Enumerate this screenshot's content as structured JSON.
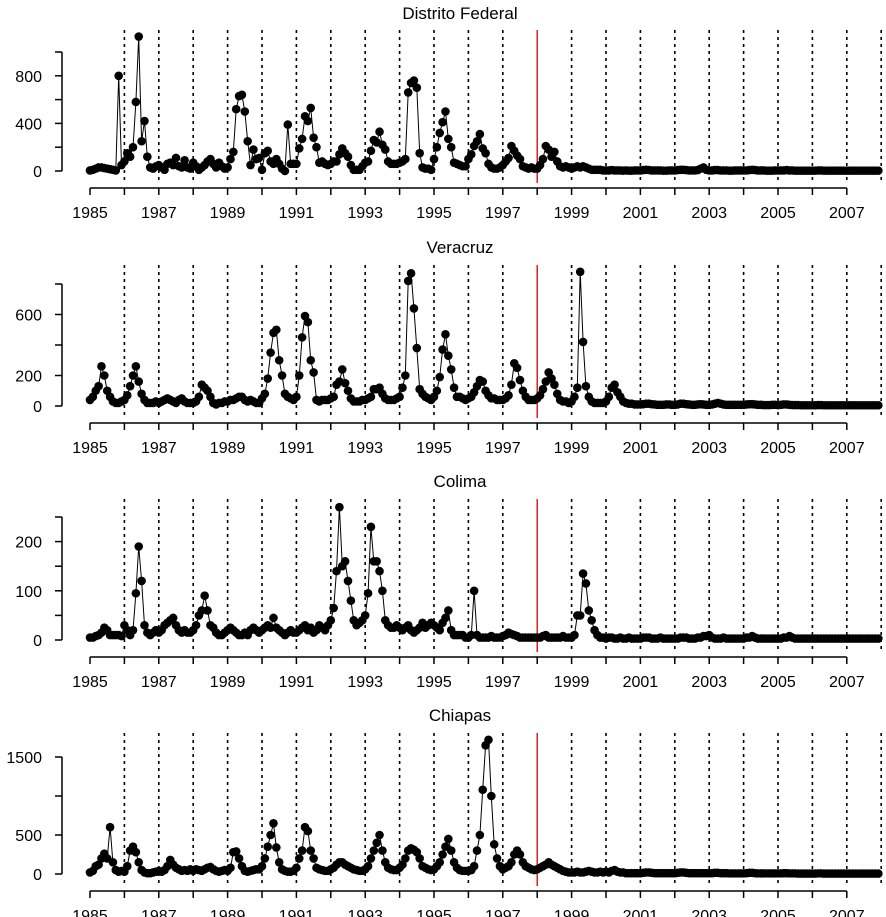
{
  "chart_data": [
    {
      "type": "line",
      "title": "Distrito Federal",
      "ylim": [
        0,
        1000
      ],
      "yticks": [
        0,
        200,
        400,
        600,
        800,
        1000
      ],
      "ytick_labels": [
        "0",
        "400",
        "800"
      ],
      "xlim": [
        1985,
        2008
      ],
      "xtick_labels": [
        "1985",
        "1987",
        "1989",
        "1991",
        "1993",
        "1995",
        "1997",
        "1999",
        "2001",
        "2003",
        "2005",
        "2007"
      ],
      "start": "1985-01",
      "frequency": "monthly",
      "vertical_marker": 1998,
      "marker_color": "#cc0000",
      "values": [
        5,
        10,
        20,
        30,
        30,
        25,
        20,
        15,
        10,
        5,
        800,
        50,
        80,
        150,
        120,
        200,
        580,
        1130,
        250,
        420,
        120,
        30,
        20,
        40,
        50,
        30,
        10,
        60,
        70,
        50,
        110,
        40,
        30,
        90,
        30,
        20,
        70,
        40,
        10,
        30,
        50,
        80,
        100,
        60,
        30,
        70,
        40,
        20,
        30,
        100,
        160,
        520,
        630,
        640,
        500,
        250,
        50,
        180,
        100,
        110,
        10,
        150,
        170,
        80,
        60,
        100,
        60,
        20,
        0,
        390,
        60,
        60,
        60,
        190,
        270,
        460,
        420,
        530,
        280,
        200,
        70,
        80,
        60,
        50,
        60,
        80,
        80,
        140,
        190,
        150,
        120,
        50,
        10,
        10,
        10,
        40,
        70,
        80,
        170,
        260,
        240,
        330,
        220,
        180,
        80,
        60,
        60,
        60,
        70,
        80,
        100,
        660,
        740,
        760,
        700,
        150,
        30,
        20,
        20,
        10,
        100,
        200,
        320,
        410,
        500,
        270,
        200,
        70,
        60,
        50,
        40,
        40,
        100,
        140,
        210,
        250,
        310,
        190,
        150,
        60,
        30,
        20,
        20,
        30,
        50,
        80,
        110,
        210,
        170,
        130,
        100,
        40,
        30,
        20,
        30,
        20,
        20,
        50,
        100,
        210,
        180,
        120,
        160,
        80,
        40,
        30,
        40,
        30,
        20,
        30,
        40,
        30,
        40,
        30,
        20,
        10,
        10,
        10,
        10,
        5,
        5,
        5,
        8,
        5,
        5,
        5,
        3,
        5,
        3,
        3,
        5,
        5,
        5,
        8,
        10,
        8,
        5,
        5,
        5,
        5,
        3,
        3,
        5,
        5,
        5,
        8,
        10,
        10,
        8,
        5,
        5,
        5,
        8,
        20,
        30,
        10,
        5,
        5,
        8,
        8,
        5,
        5,
        5,
        3,
        3,
        5,
        5,
        5,
        5,
        5,
        8,
        10,
        8,
        5,
        5,
        5,
        3,
        3,
        3,
        5,
        5,
        5,
        5,
        8,
        5,
        5,
        3,
        3,
        3,
        3,
        3,
        3,
        3,
        3,
        5,
        5,
        3,
        3,
        3,
        3,
        3,
        3,
        3,
        3,
        3,
        3,
        3,
        3,
        3,
        3,
        3,
        3,
        3,
        3,
        3,
        3
      ]
    },
    {
      "type": "line",
      "title": "Veracruz",
      "ylim": [
        0,
        800
      ],
      "yticks": [
        0,
        200,
        400,
        600,
        800
      ],
      "ytick_labels": [
        "0",
        "200",
        "600"
      ],
      "xlim": [
        1985,
        2008
      ],
      "xtick_labels": [
        "1985",
        "1987",
        "1989",
        "1991",
        "1993",
        "1995",
        "1997",
        "1999",
        "2001",
        "2003",
        "2005",
        "2007"
      ],
      "start": "1985-01",
      "frequency": "monthly",
      "vertical_marker": 1998,
      "marker_color": "#cc0000",
      "values": [
        40,
        60,
        100,
        130,
        260,
        200,
        100,
        60,
        30,
        20,
        20,
        30,
        40,
        70,
        130,
        200,
        260,
        160,
        80,
        40,
        20,
        20,
        20,
        30,
        20,
        30,
        40,
        50,
        40,
        30,
        20,
        40,
        50,
        30,
        20,
        20,
        20,
        30,
        60,
        140,
        120,
        100,
        60,
        20,
        10,
        20,
        20,
        30,
        30,
        40,
        40,
        50,
        60,
        60,
        40,
        30,
        40,
        30,
        20,
        20,
        50,
        80,
        180,
        350,
        480,
        500,
        300,
        200,
        80,
        60,
        50,
        40,
        60,
        200,
        450,
        590,
        550,
        300,
        220,
        40,
        30,
        40,
        40,
        40,
        50,
        60,
        140,
        160,
        240,
        150,
        100,
        50,
        30,
        30,
        30,
        40,
        40,
        50,
        60,
        110,
        110,
        120,
        80,
        50,
        40,
        40,
        40,
        50,
        60,
        120,
        200,
        820,
        870,
        640,
        380,
        110,
        80,
        60,
        50,
        40,
        60,
        100,
        190,
        370,
        470,
        330,
        240,
        120,
        60,
        60,
        50,
        40,
        50,
        60,
        90,
        130,
        170,
        160,
        100,
        70,
        50,
        50,
        40,
        40,
        40,
        50,
        70,
        140,
        280,
        250,
        170,
        100,
        60,
        40,
        40,
        40,
        50,
        70,
        110,
        160,
        220,
        180,
        140,
        80,
        40,
        30,
        30,
        20,
        30,
        60,
        120,
        880,
        420,
        130,
        60,
        30,
        20,
        20,
        20,
        20,
        30,
        60,
        120,
        140,
        90,
        60,
        30,
        20,
        15,
        15,
        10,
        10,
        10,
        12,
        15,
        15,
        12,
        10,
        8,
        8,
        8,
        10,
        10,
        8,
        8,
        10,
        15,
        15,
        12,
        10,
        8,
        8,
        10,
        12,
        10,
        8,
        8,
        10,
        15,
        20,
        15,
        10,
        8,
        8,
        8,
        8,
        8,
        8,
        8,
        10,
        12,
        12,
        10,
        8,
        8,
        6,
        6,
        6,
        8,
        8,
        6,
        8,
        10,
        10,
        8,
        6,
        6,
        6,
        5,
        5,
        5,
        5,
        5,
        5,
        6,
        6,
        5,
        5,
        5,
        5,
        5,
        5,
        5,
        5,
        5,
        5,
        5,
        5,
        5,
        5,
        5,
        5,
        5,
        5,
        5,
        5
      ]
    },
    {
      "type": "line",
      "title": "Colima",
      "ylim": [
        0,
        250
      ],
      "yticks": [
        0,
        50,
        100,
        150,
        200,
        250
      ],
      "ytick_labels": [
        "0",
        "100",
        "200"
      ],
      "xlim": [
        1985,
        2008
      ],
      "xtick_labels": [
        "1985",
        "1987",
        "1989",
        "1991",
        "1993",
        "1995",
        "1997",
        "1999",
        "2001",
        "2003",
        "2005",
        "2007"
      ],
      "start": "1985-01",
      "frequency": "monthly",
      "vertical_marker": 1998,
      "marker_color": "#cc0000",
      "values": [
        5,
        5,
        8,
        10,
        15,
        25,
        20,
        10,
        10,
        10,
        10,
        8,
        30,
        20,
        10,
        20,
        95,
        190,
        120,
        30,
        15,
        10,
        15,
        20,
        15,
        20,
        30,
        35,
        40,
        45,
        30,
        20,
        15,
        20,
        15,
        15,
        20,
        30,
        50,
        60,
        90,
        60,
        30,
        25,
        15,
        10,
        10,
        15,
        20,
        25,
        20,
        15,
        10,
        10,
        15,
        10,
        20,
        25,
        20,
        15,
        20,
        25,
        30,
        25,
        45,
        25,
        20,
        15,
        10,
        15,
        20,
        15,
        15,
        20,
        25,
        30,
        20,
        25,
        15,
        20,
        30,
        25,
        20,
        30,
        40,
        65,
        140,
        270,
        150,
        160,
        120,
        80,
        40,
        30,
        35,
        40,
        50,
        95,
        230,
        160,
        160,
        140,
        100,
        40,
        30,
        25,
        25,
        30,
        25,
        20,
        25,
        30,
        20,
        15,
        20,
        25,
        35,
        25,
        30,
        35,
        30,
        25,
        20,
        35,
        45,
        60,
        20,
        10,
        10,
        10,
        10,
        5,
        5,
        10,
        100,
        10,
        5,
        5,
        5,
        5,
        8,
        5,
        5,
        5,
        8,
        10,
        15,
        12,
        10,
        8,
        5,
        5,
        5,
        5,
        5,
        5,
        5,
        5,
        8,
        10,
        5,
        5,
        5,
        5,
        5,
        8,
        5,
        5,
        5,
        10,
        50,
        50,
        135,
        115,
        60,
        40,
        20,
        10,
        5,
        5,
        3,
        5,
        5,
        3,
        3,
        5,
        3,
        3,
        5,
        3,
        3,
        3,
        3,
        5,
        5,
        5,
        3,
        3,
        3,
        5,
        3,
        3,
        3,
        3,
        3,
        3,
        5,
        5,
        5,
        3,
        3,
        3,
        5,
        5,
        8,
        8,
        10,
        5,
        3,
        3,
        3,
        5,
        3,
        3,
        3,
        3,
        3,
        3,
        3,
        5,
        5,
        8,
        5,
        3,
        3,
        3,
        3,
        3,
        3,
        3,
        3,
        3,
        5,
        5,
        8,
        5,
        3,
        3,
        3,
        3,
        3,
        3,
        3,
        3,
        3,
        3,
        3,
        3,
        3,
        3,
        3,
        3,
        3,
        3,
        3,
        3,
        3,
        3,
        3,
        3,
        3,
        3,
        3,
        3,
        3,
        3
      ]
    },
    {
      "type": "line",
      "title": "Chiapas",
      "ylim": [
        0,
        1500
      ],
      "yticks": [
        0,
        500,
        1000,
        1500
      ],
      "ytick_labels": [
        "0",
        "500",
        "1500"
      ],
      "xlim": [
        1985,
        2008
      ],
      "xtick_labels": [
        "1985",
        "1987",
        "1989",
        "1991",
        "1993",
        "1995",
        "1997",
        "1999",
        "2001",
        "2003",
        "2005",
        "2007"
      ],
      "start": "1985-01",
      "frequency": "monthly",
      "vertical_marker": 1998,
      "marker_color": "#cc0000",
      "values": [
        20,
        40,
        100,
        120,
        200,
        260,
        200,
        600,
        150,
        50,
        30,
        40,
        30,
        100,
        300,
        350,
        280,
        150,
        50,
        20,
        10,
        10,
        20,
        30,
        40,
        30,
        50,
        100,
        180,
        120,
        80,
        60,
        40,
        50,
        40,
        60,
        40,
        60,
        50,
        40,
        60,
        80,
        90,
        60,
        40,
        30,
        40,
        50,
        40,
        80,
        280,
        290,
        200,
        100,
        40,
        30,
        40,
        50,
        60,
        60,
        100,
        200,
        350,
        500,
        650,
        340,
        150,
        60,
        40,
        30,
        30,
        40,
        80,
        200,
        300,
        600,
        550,
        300,
        200,
        80,
        60,
        50,
        40,
        40,
        60,
        80,
        120,
        150,
        150,
        120,
        100,
        80,
        60,
        50,
        40,
        40,
        60,
        100,
        200,
        300,
        400,
        500,
        300,
        150,
        80,
        60,
        50,
        50,
        80,
        120,
        200,
        300,
        330,
        310,
        280,
        200,
        100,
        80,
        60,
        50,
        60,
        100,
        150,
        250,
        350,
        450,
        300,
        150,
        80,
        50,
        40,
        40,
        40,
        50,
        100,
        300,
        500,
        1080,
        1650,
        1720,
        1000,
        380,
        200,
        100,
        60,
        80,
        100,
        150,
        250,
        300,
        250,
        150,
        100,
        80,
        60,
        50,
        60,
        80,
        100,
        120,
        150,
        120,
        100,
        80,
        60,
        40,
        30,
        20,
        20,
        20,
        30,
        20,
        20,
        30,
        40,
        30,
        20,
        20,
        30,
        20,
        30,
        20,
        40,
        50,
        30,
        20,
        20,
        10,
        10,
        10,
        10,
        10,
        10,
        15,
        20,
        20,
        15,
        10,
        10,
        10,
        10,
        10,
        10,
        10,
        10,
        15,
        20,
        20,
        15,
        10,
        10,
        10,
        10,
        10,
        10,
        10,
        10,
        10,
        15,
        15,
        10,
        10,
        10,
        8,
        8,
        8,
        8,
        8,
        8,
        10,
        15,
        15,
        10,
        8,
        8,
        8,
        8,
        8,
        8,
        8,
        8,
        8,
        10,
        10,
        8,
        8,
        8,
        5,
        5,
        5,
        5,
        5,
        5,
        5,
        8,
        8,
        5,
        5,
        5,
        5,
        5,
        5,
        5,
        5,
        5,
        5,
        5,
        5,
        5,
        5,
        5,
        5,
        5,
        5,
        5,
        5
      ]
    }
  ]
}
